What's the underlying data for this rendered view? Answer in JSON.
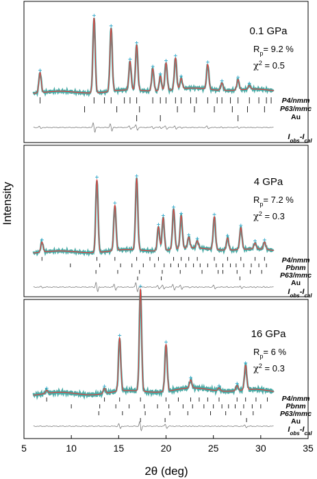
{
  "chart_data": {
    "type": "line",
    "xlabel": "2θ (deg)",
    "ylabel": "Intensity",
    "xlim": [
      5,
      35
    ],
    "x_ticks": [
      5,
      10,
      15,
      20,
      25,
      30,
      35
    ],
    "panels": [
      {
        "pressure": "0.1 GPa",
        "rp": "9.2 %",
        "chi2": "0.5",
        "phases": [
          "P4/nmm",
          "P63/mmc",
          "Au"
        ],
        "diff_label": "Iobs-Ical",
        "peaks": [
          {
            "x": 6.7,
            "y": 0.27
          },
          {
            "x": 12.4,
            "y": 1.0
          },
          {
            "x": 14.2,
            "y": 0.84
          },
          {
            "x": 16.2,
            "y": 0.38
          },
          {
            "x": 16.9,
            "y": 0.6
          },
          {
            "x": 18.6,
            "y": 0.3
          },
          {
            "x": 19.4,
            "y": 0.2
          },
          {
            "x": 20.0,
            "y": 0.37
          },
          {
            "x": 21.0,
            "y": 0.42
          },
          {
            "x": 21.6,
            "y": 0.14
          },
          {
            "x": 24.4,
            "y": 0.33
          },
          {
            "x": 25.9,
            "y": 0.1
          },
          {
            "x": 27.6,
            "y": 0.14
          },
          {
            "x": 28.8,
            "y": 0.05
          }
        ],
        "ticks": [
          [
            6.7,
            12.4,
            13.5,
            14.2,
            15.6,
            16.2,
            16.9,
            18.6,
            19.4,
            20.0,
            21.0,
            21.6,
            22.6,
            23.2,
            24.4,
            25.4,
            25.9,
            26.8,
            27.6,
            28.8,
            29.8,
            30.6,
            31.1
          ],
          [
            11.4,
            14.8,
            17.2,
            21.2,
            23.0,
            25.1,
            27.0,
            28.6,
            30.4
          ],
          [
            16.9,
            19.4,
            27.6
          ]
        ]
      },
      {
        "pressure": "4 GPa",
        "rp": "7.2 %",
        "chi2": "0.3",
        "phases": [
          "P4/nmm",
          "Pbnm",
          "P63/mmc",
          "Au"
        ],
        "diff_label": "Iobs-Ical",
        "peaks": [
          {
            "x": 6.9,
            "y": 0.14
          },
          {
            "x": 12.7,
            "y": 1.0
          },
          {
            "x": 14.6,
            "y": 0.62
          },
          {
            "x": 16.9,
            "y": 0.98
          },
          {
            "x": 19.2,
            "y": 0.33
          },
          {
            "x": 19.7,
            "y": 0.45
          },
          {
            "x": 20.8,
            "y": 0.55
          },
          {
            "x": 21.6,
            "y": 0.45
          },
          {
            "x": 22.4,
            "y": 0.15
          },
          {
            "x": 23.3,
            "y": 0.1
          },
          {
            "x": 25.1,
            "y": 0.45
          },
          {
            "x": 26.5,
            "y": 0.17
          },
          {
            "x": 27.9,
            "y": 0.3
          },
          {
            "x": 29.4,
            "y": 0.08
          },
          {
            "x": 30.4,
            "y": 0.1
          }
        ],
        "ticks": [
          [
            6.9,
            12.7,
            14.6,
            16.9,
            18.3,
            19.2,
            20.8,
            21.6,
            22.4,
            23.3,
            25.1,
            26.5,
            27.9,
            29.4,
            30.4
          ],
          [
            9.9,
            13.0,
            15.2,
            16.4,
            17.6,
            18.8,
            19.8,
            20.5,
            21.3,
            22.1,
            22.9,
            23.6,
            24.4,
            25.3,
            26.0,
            26.8,
            27.4,
            28.2,
            29.0,
            29.8,
            30.6
          ],
          [
            12.6,
            14.9,
            17.2,
            19.6,
            21.5,
            23.8,
            25.5,
            26.0,
            27.5,
            28.9,
            30.1
          ],
          [
            17.0,
            19.5,
            27.8
          ]
        ]
      },
      {
        "pressure": "16 GPa",
        "rp": "6 %",
        "chi2": "0.3",
        "phases": [
          "P4/nmm",
          "Pbnm",
          "P63/mmc",
          "Au"
        ],
        "diff_label": "Iobs-Ical",
        "peaks": [
          {
            "x": 7.4,
            "y": 0.03
          },
          {
            "x": 13.5,
            "y": 0.05
          },
          {
            "x": 15.1,
            "y": 0.52
          },
          {
            "x": 17.3,
            "y": 1.0
          },
          {
            "x": 20.0,
            "y": 0.46
          },
          {
            "x": 22.6,
            "y": 0.08
          },
          {
            "x": 25.6,
            "y": 0.03
          },
          {
            "x": 27.5,
            "y": 0.05
          },
          {
            "x": 28.4,
            "y": 0.24
          }
        ],
        "ticks": [
          [
            7.4,
            13.5,
            15.1,
            17.3,
            20.0,
            21.3,
            22.6,
            23.5,
            24.4,
            25.6,
            27.5,
            28.4,
            29.5,
            30.7
          ],
          [
            10.0,
            13.0,
            14.7,
            16.1,
            17.7,
            19.1,
            20.3,
            21.8,
            22.8,
            24.0,
            25.0,
            25.9,
            26.6,
            27.3,
            28.2,
            29.1,
            30.0
          ],
          [
            12.9,
            15.4,
            17.8,
            20.4,
            22.3,
            24.7,
            26.3,
            27.9,
            29.2
          ],
          [
            17.3,
            19.9,
            28.5
          ]
        ]
      }
    ]
  }
}
